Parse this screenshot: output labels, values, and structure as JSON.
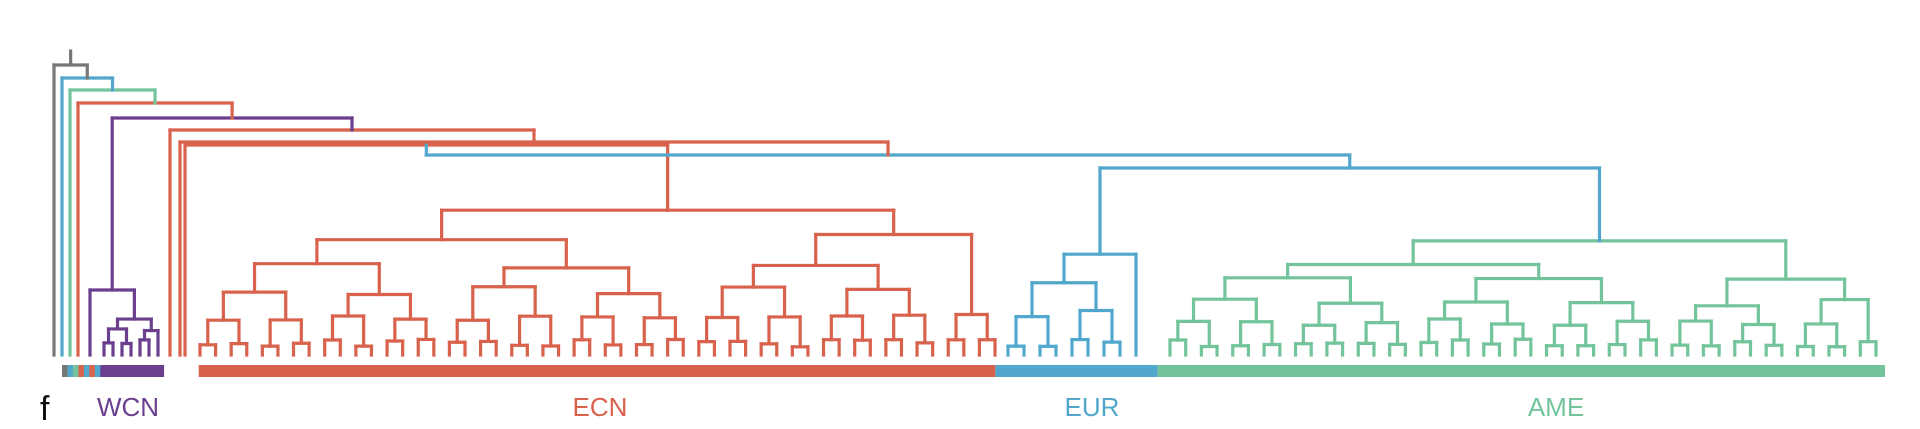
{
  "panel": {
    "letter": "f"
  },
  "colors": {
    "root": "#777777",
    "WCN": "#6b3f8e",
    "ECN": "#d9624c",
    "EUR": "#52a7cc",
    "AME": "#73c49b"
  },
  "clades": [
    {
      "name": "WCN",
      "label": "WCN",
      "color": "#6b3f8e",
      "leaves": 7,
      "bar_span": [
        0.021,
        0.056
      ]
    },
    {
      "name": "ECN",
      "label": "ECN",
      "color": "#d9624c",
      "leaves": 52,
      "bar_span": [
        0.075,
        0.512
      ]
    },
    {
      "name": "EUR",
      "label": "EUR",
      "color": "#52a7cc",
      "leaves": 9,
      "bar_span": [
        0.512,
        0.601
      ]
    },
    {
      "name": "AME",
      "label": "AME",
      "color": "#73c49b",
      "leaves": 46,
      "bar_span": [
        0.601,
        1.0
      ]
    }
  ],
  "outgroups": [
    {
      "color": "#777777"
    },
    {
      "color": "#52a7cc"
    },
    {
      "color": "#73c49b"
    },
    {
      "color": "#d9624c"
    },
    {
      "color": "#52a7cc"
    },
    {
      "color": "#d9624c"
    },
    {
      "color": "#52a7cc"
    }
  ]
}
